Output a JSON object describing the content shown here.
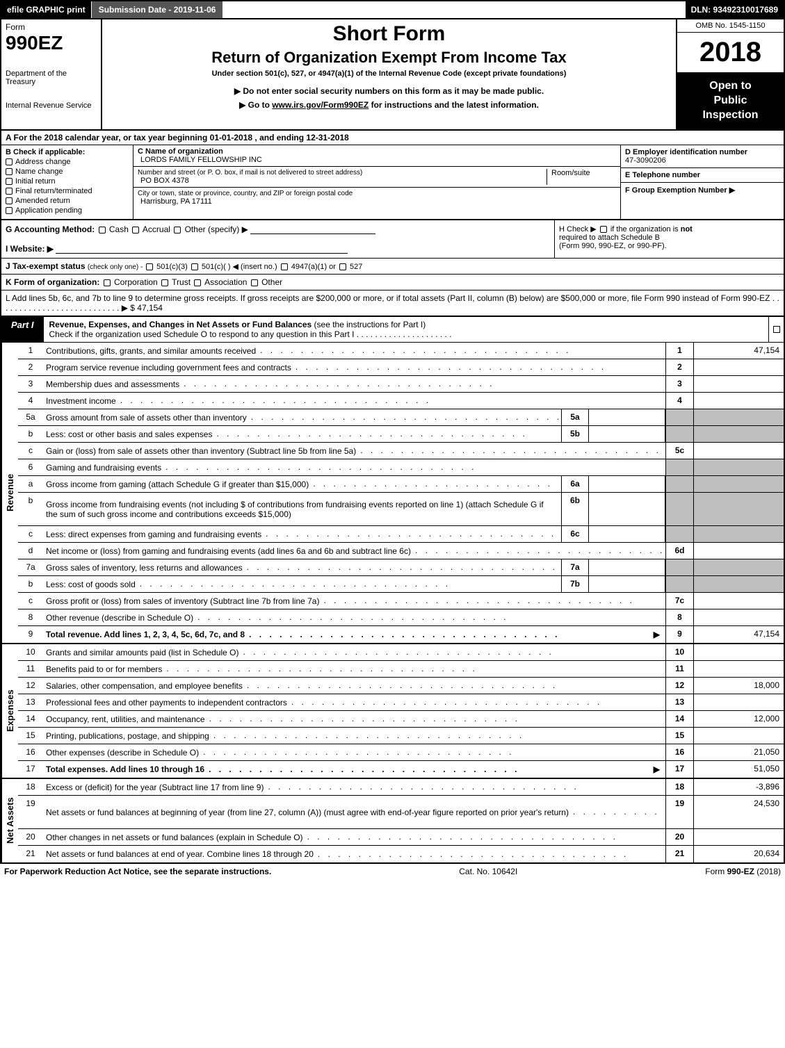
{
  "colors": {
    "black": "#000000",
    "white": "#ffffff",
    "shade": "#bfbfbf",
    "darkgrey": "#555555"
  },
  "topbar": {
    "efile": "efile GRAPHIC print",
    "subdate": "Submission Date - 2019-11-06",
    "dln": "DLN: 93492310017689"
  },
  "header": {
    "form_word": "Form",
    "form_num": "990EZ",
    "dept1": "Department of the Treasury",
    "dept2": "Internal Revenue Service",
    "short": "Short Form",
    "title": "Return of Organization Exempt From Income Tax",
    "sub1": "Under section 501(c), 527, or 4947(a)(1) of the Internal Revenue Code (except private foundations)",
    "sub2": "▶ Do not enter social security numbers on this form as it may be made public.",
    "sub3_pre": "▶ Go to ",
    "sub3_link": "www.irs.gov/Form990EZ",
    "sub3_post": " for instructions and the latest information.",
    "omb": "OMB No. 1545-1150",
    "year": "2018",
    "open1": "Open to",
    "open2": "Public",
    "open3": "Inspection"
  },
  "lineA": {
    "pre": "A  For the 2018 calendar year, or tax year beginning ",
    "begin": "01-01-2018",
    "mid": " , and ending ",
    "end": "12-31-2018"
  },
  "boxB": {
    "title": "B  Check if applicable:",
    "items": [
      "Address change",
      "Name change",
      "Initial return",
      "Final return/terminated",
      "Amended return",
      "Application pending"
    ]
  },
  "boxC": {
    "label": "C Name of organization",
    "name": "LORDS FAMILY FELLOWSHIP INC",
    "addr_label": "Number and street (or P. O. box, if mail is not delivered to street address)",
    "addr": "PO BOX 4378",
    "room_label": "Room/suite",
    "city_label": "City or town, state or province, country, and ZIP or foreign postal code",
    "city": "Harrisburg, PA  17111"
  },
  "boxD": {
    "label": "D Employer identification number",
    "value": "47-3090206"
  },
  "boxE": {
    "label": "E Telephone number",
    "value": ""
  },
  "boxF": {
    "label": "F Group Exemption Number  ▶",
    "value": ""
  },
  "lineG": {
    "label": "G Accounting Method:",
    "opts": [
      "Cash",
      "Accrual",
      "Other (specify) ▶"
    ]
  },
  "lineH": {
    "pre": "H  Check ▶ ",
    "post": " if the organization is ",
    "not": "not",
    "l2": "required to attach Schedule B",
    "l3": "(Form 990, 990-EZ, or 990-PF)."
  },
  "lineI": {
    "label": "I Website: ▶"
  },
  "lineJ": {
    "label": "J Tax-exempt status",
    "sub": "(check only one) - ",
    "opts": [
      "501(c)(3)",
      "501(c)(  ) ◀ (insert no.)",
      "4947(a)(1) or",
      "527"
    ]
  },
  "lineK": {
    "label": "K Form of organization:",
    "opts": [
      "Corporation",
      "Trust",
      "Association",
      "Other"
    ]
  },
  "lineL": {
    "text": "L Add lines 5b, 6c, and 7b to line 9 to determine gross receipts. If gross receipts are $200,000 or more, or if total assets (Part II, column (B) below) are $500,000 or more, file Form 990 instead of Form 990-EZ",
    "amount": "▶ $ 47,154"
  },
  "part1": {
    "tag": "Part I",
    "title_b": "Revenue, Expenses, and Changes in Net Assets or Fund Balances",
    "title_r": " (see the instructions for Part I)",
    "check": "Check if the organization used Schedule O to respond to any question in this Part I"
  },
  "sections": {
    "revenue": {
      "side": "Revenue",
      "rows": [
        {
          "n": "1",
          "d": "Contributions, gifts, grants, and similar amounts received",
          "rn": "1",
          "rv": "47,154"
        },
        {
          "n": "2",
          "d": "Program service revenue including government fees and contracts",
          "rn": "2",
          "rv": ""
        },
        {
          "n": "3",
          "d": "Membership dues and assessments",
          "rn": "3",
          "rv": ""
        },
        {
          "n": "4",
          "d": "Investment income",
          "rn": "4",
          "rv": ""
        },
        {
          "n": "5a",
          "d": "Gross amount from sale of assets other than inventory",
          "sn": "5a",
          "sv": "",
          "shade_r": true
        },
        {
          "n": "b",
          "d": "Less: cost or other basis and sales expenses",
          "sn": "5b",
          "sv": "",
          "shade_r": true
        },
        {
          "n": "c",
          "d": "Gain or (loss) from sale of assets other than inventory (Subtract line 5b from line 5a)",
          "rn": "5c",
          "rv": ""
        },
        {
          "n": "6",
          "d": "Gaming and fundraising events",
          "shade_r": true,
          "no_rn": true
        },
        {
          "n": "a",
          "d": "Gross income from gaming (attach Schedule G if greater than $15,000)",
          "sn": "6a",
          "sv": "",
          "shade_r": true
        },
        {
          "n": "b",
          "d": "Gross income from fundraising events (not including $                          of contributions from fundraising events reported on line 1) (attach Schedule G if the sum of such gross income and contributions exceeds $15,000)",
          "sn": "6b",
          "sv": "",
          "shade_r": true,
          "tall": true
        },
        {
          "n": "c",
          "d": "Less: direct expenses from gaming and fundraising events",
          "sn": "6c",
          "sv": "",
          "shade_r": true
        },
        {
          "n": "d",
          "d": "Net income or (loss) from gaming and fundraising events (add lines 6a and 6b and subtract line 6c)",
          "rn": "6d",
          "rv": ""
        },
        {
          "n": "7a",
          "d": "Gross sales of inventory, less returns and allowances",
          "sn": "7a",
          "sv": "",
          "shade_r": true
        },
        {
          "n": "b",
          "d": "Less: cost of goods sold",
          "sn": "7b",
          "sv": "",
          "shade_r": true
        },
        {
          "n": "c",
          "d": "Gross profit or (loss) from sales of inventory (Subtract line 7b from line 7a)",
          "rn": "7c",
          "rv": ""
        },
        {
          "n": "8",
          "d": "Other revenue (describe in Schedule O)",
          "rn": "8",
          "rv": ""
        },
        {
          "n": "9",
          "d": "Total revenue. Add lines 1, 2, 3, 4, 5c, 6d, 7c, and 8",
          "rn": "9",
          "rv": "47,154",
          "bold": true,
          "arrow": true
        }
      ]
    },
    "expenses": {
      "side": "Expenses",
      "rows": [
        {
          "n": "10",
          "d": "Grants and similar amounts paid (list in Schedule O)",
          "rn": "10",
          "rv": ""
        },
        {
          "n": "11",
          "d": "Benefits paid to or for members",
          "rn": "11",
          "rv": ""
        },
        {
          "n": "12",
          "d": "Salaries, other compensation, and employee benefits",
          "rn": "12",
          "rv": "18,000"
        },
        {
          "n": "13",
          "d": "Professional fees and other payments to independent contractors",
          "rn": "13",
          "rv": ""
        },
        {
          "n": "14",
          "d": "Occupancy, rent, utilities, and maintenance",
          "rn": "14",
          "rv": "12,000"
        },
        {
          "n": "15",
          "d": "Printing, publications, postage, and shipping",
          "rn": "15",
          "rv": ""
        },
        {
          "n": "16",
          "d": "Other expenses (describe in Schedule O)",
          "rn": "16",
          "rv": "21,050"
        },
        {
          "n": "17",
          "d": "Total expenses. Add lines 10 through 16",
          "rn": "17",
          "rv": "51,050",
          "bold": true,
          "arrow": true
        }
      ]
    },
    "netassets": {
      "side": "Net Assets",
      "rows": [
        {
          "n": "18",
          "d": "Excess or (deficit) for the year (Subtract line 17 from line 9)",
          "rn": "18",
          "rv": "-3,896"
        },
        {
          "n": "19",
          "d": "Net assets or fund balances at beginning of year (from line 27, column (A)) (must agree with end-of-year figure reported on prior year's return)",
          "rn": "19",
          "rv": "24,530",
          "tall": true
        },
        {
          "n": "20",
          "d": "Other changes in net assets or fund balances (explain in Schedule O)",
          "rn": "20",
          "rv": ""
        },
        {
          "n": "21",
          "d": "Net assets or fund balances at end of year. Combine lines 18 through 20",
          "rn": "21",
          "rv": "20,634"
        }
      ]
    }
  },
  "footer": {
    "left": "For Paperwork Reduction Act Notice, see the separate instructions.",
    "mid": "Cat. No. 10642I",
    "right": "Form 990-EZ (2018)"
  },
  "dots": ".  .  .  .  .  .  .  .  .  .  .  .  .  .  .  .  .  .  .  .  .  .  .  .  .  .  .  .  .  .  ."
}
